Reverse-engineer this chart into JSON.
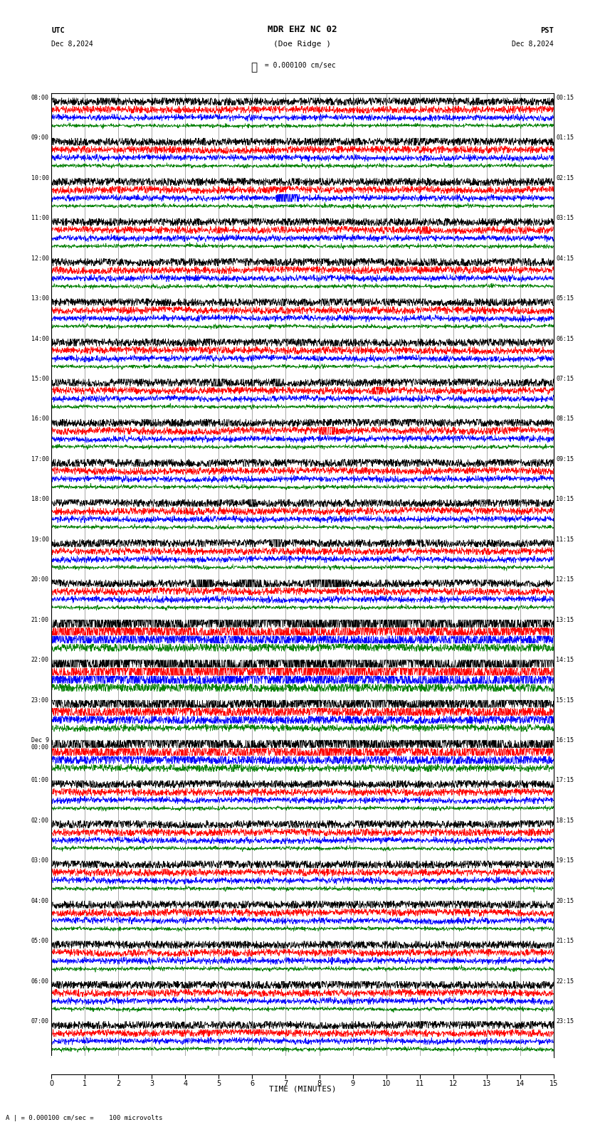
{
  "title_line1": "MDR EHZ NC 02",
  "title_line2": "(Doe Ridge )",
  "scale_label": "= 0.000100 cm/sec",
  "utc_label": "UTC",
  "utc_date": "Dec 8,2024",
  "pst_label": "PST",
  "pst_date": "Dec 8,2024",
  "bottom_label": "TIME (MINUTES)",
  "bottom_scale": "= 0.000100 cm/sec =    100 microvolts",
  "left_times": [
    "08:00",
    "09:00",
    "10:00",
    "11:00",
    "12:00",
    "13:00",
    "14:00",
    "15:00",
    "16:00",
    "17:00",
    "18:00",
    "19:00",
    "20:00",
    "21:00",
    "22:00",
    "23:00",
    "Dec 9\n00:00",
    "01:00",
    "02:00",
    "03:00",
    "04:00",
    "05:00",
    "06:00",
    "07:00"
  ],
  "right_times": [
    "00:15",
    "01:15",
    "02:15",
    "03:15",
    "04:15",
    "05:15",
    "06:15",
    "07:15",
    "08:15",
    "09:15",
    "10:15",
    "11:15",
    "12:15",
    "13:15",
    "14:15",
    "15:15",
    "16:15",
    "17:15",
    "18:15",
    "19:15",
    "20:15",
    "21:15",
    "22:15",
    "23:15"
  ],
  "num_rows": 24,
  "traces_per_row": 4,
  "minutes_per_row": 15,
  "colors": [
    "black",
    "red",
    "blue",
    "green"
  ],
  "bg_color": "white",
  "grid_color": "#888888",
  "fig_width": 8.5,
  "fig_height": 15.84,
  "dpi": 100
}
